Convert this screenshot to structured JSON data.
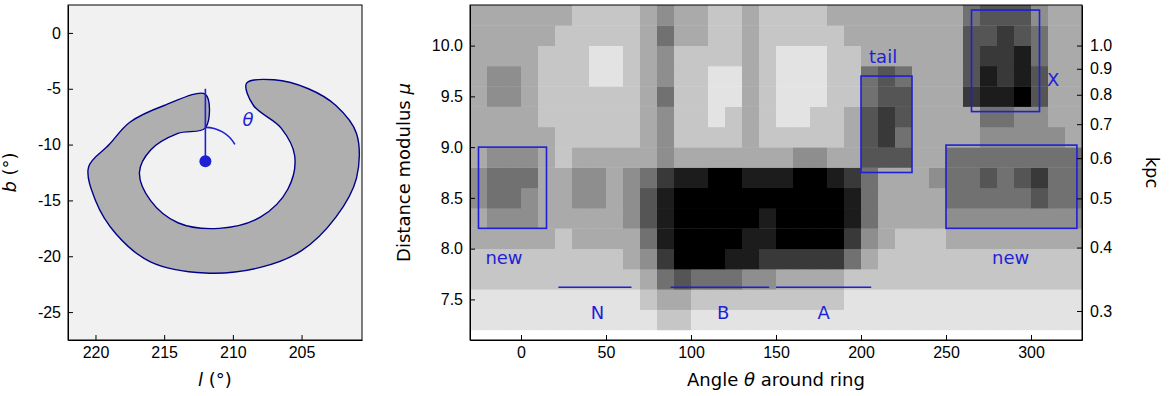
{
  "chart_data": [
    {
      "type": "map",
      "x_label": "l (°)",
      "y_label": "b (°)",
      "xlim": [
        222,
        200.6
      ],
      "ylim": [
        -27.5,
        2.5
      ],
      "xticks": [
        220,
        215,
        210,
        205
      ],
      "yticks": [
        0,
        -5,
        -10,
        -15,
        -20,
        -25
      ],
      "contour": {
        "color": "#00008b",
        "l": [
          212,
          215,
          217.5,
          219,
          220.5,
          220,
          218.5,
          216,
          212,
          208,
          205,
          202.5,
          201,
          201,
          202.5,
          204.5,
          207,
          209,
          208.5,
          206.5,
          205.5,
          206,
          208,
          211,
          214,
          216,
          216.8,
          216,
          214,
          212
        ],
        "b": [
          -5.5,
          -6.5,
          -8,
          -10,
          -12,
          -15,
          -18,
          -20.5,
          -21.5,
          -21,
          -19.5,
          -16.5,
          -13,
          -9,
          -6.5,
          -5,
          -4.2,
          -4.5,
          -6.5,
          -8.5,
          -11,
          -14,
          -16.5,
          -17.5,
          -17,
          -15,
          -12.5,
          -10.5,
          -9,
          -8.5
        ]
      },
      "center": {
        "l": 212,
        "b": -11.5,
        "color": "#1f1fd6"
      },
      "pointer": {
        "l": [
          212,
          212
        ],
        "b": [
          -11.5,
          -5
        ]
      },
      "angle_label": {
        "text": "θ",
        "l": 209.3,
        "b": -8.3
      }
    },
    {
      "type": "heatmap",
      "x_label": "Angle θ around ring",
      "y_label": "Distance modulus μ",
      "y2_label": "kpc",
      "xlim": [
        -30,
        330
      ],
      "ylim": [
        7.1,
        10.4
      ],
      "y2lim": [
        0.263,
        1.202
      ],
      "xticks": [
        0,
        50,
        100,
        150,
        200,
        250,
        300
      ],
      "yticks": [
        7.5,
        {
          "value": 8,
          "label": "8.0"
        },
        8.5,
        {
          "value": 9,
          "label": "9.0"
        },
        9.5,
        {
          "value": 10,
          "label": "10.0"
        }
      ],
      "y2ticks": [
        0.3,
        0.4,
        0.5,
        0.6,
        0.7,
        0.8,
        0.9,
        {
          "value": 1,
          "label": "1.0"
        }
      ],
      "theta_edges": [
        -30,
        -20,
        -10,
        0,
        10,
        20,
        30,
        40,
        50,
        60,
        70,
        80,
        90,
        100,
        110,
        120,
        130,
        140,
        150,
        160,
        170,
        180,
        190,
        200,
        210,
        220,
        230,
        240,
        250,
        260,
        270,
        280,
        290,
        300,
        310,
        320,
        330
      ],
      "mu_edges": [
        7.2,
        7.4,
        7.6,
        7.8,
        8.0,
        8.2,
        8.4,
        8.6,
        8.8,
        9.0,
        9.2,
        9.4,
        9.6,
        9.8,
        10.0,
        10.2,
        10.4
      ],
      "cells": [
        [
          1,
          1,
          1,
          1,
          1,
          1,
          1,
          1,
          1,
          1,
          1,
          2,
          2,
          1,
          1,
          1,
          1,
          1,
          1,
          1,
          1,
          1,
          1,
          1,
          1,
          1,
          1,
          1,
          1,
          1,
          1,
          1,
          1,
          1,
          1,
          1
        ],
        [
          1,
          1,
          1,
          1,
          1,
          1,
          1,
          1,
          1,
          1,
          2,
          3,
          3,
          2,
          2,
          2,
          2,
          2,
          2,
          2,
          2,
          2,
          1,
          1,
          1,
          1,
          1,
          1,
          1,
          1,
          1,
          1,
          1,
          1,
          1,
          1
        ],
        [
          2,
          2,
          2,
          2,
          2,
          2,
          2,
          2,
          2,
          2,
          3,
          5,
          6,
          5,
          5,
          5,
          4,
          4,
          3,
          3,
          3,
          3,
          2,
          2,
          2,
          2,
          2,
          2,
          2,
          2,
          2,
          2,
          2,
          2,
          2,
          2
        ],
        [
          2,
          2,
          2,
          2,
          2,
          2,
          2,
          2,
          2,
          3,
          4,
          7,
          9,
          9,
          9,
          8,
          8,
          7,
          7,
          7,
          7,
          7,
          5,
          3,
          2,
          2,
          2,
          2,
          2,
          2,
          2,
          2,
          2,
          2,
          2,
          2
        ],
        [
          3,
          3,
          3,
          3,
          3,
          2,
          3,
          3,
          3,
          3,
          5,
          8,
          9,
          9,
          9,
          9,
          8,
          8,
          9,
          9,
          9,
          9,
          7,
          4,
          3,
          2,
          2,
          2,
          3,
          3,
          3,
          3,
          3,
          3,
          3,
          3
        ],
        [
          3,
          4,
          4,
          4,
          3,
          3,
          3,
          3,
          3,
          4,
          6,
          8,
          9,
          9,
          9,
          9,
          9,
          8,
          9,
          9,
          9,
          9,
          8,
          5,
          3,
          3,
          3,
          3,
          4,
          4,
          4,
          4,
          4,
          4,
          4,
          4
        ],
        [
          4,
          5,
          5,
          4,
          3,
          3,
          4,
          4,
          3,
          4,
          6,
          8,
          9,
          9,
          9,
          9,
          9,
          9,
          9,
          9,
          9,
          9,
          8,
          5,
          3,
          3,
          3,
          3,
          5,
          5,
          5,
          5,
          5,
          6,
          5,
          5
        ],
        [
          4,
          5,
          5,
          5,
          3,
          3,
          4,
          4,
          3,
          4,
          5,
          7,
          8,
          8,
          9,
          9,
          8,
          8,
          8,
          9,
          9,
          8,
          7,
          5,
          3,
          3,
          3,
          4,
          5,
          5,
          6,
          5,
          6,
          7,
          5,
          5
        ],
        [
          3,
          4,
          4,
          4,
          3,
          2,
          3,
          3,
          3,
          3,
          3,
          4,
          3,
          3,
          3,
          3,
          3,
          3,
          3,
          4,
          4,
          3,
          3,
          6,
          6,
          6,
          3,
          3,
          5,
          5,
          5,
          5,
          5,
          5,
          5,
          5
        ],
        [
          3,
          3,
          3,
          3,
          3,
          2,
          2,
          2,
          2,
          2,
          3,
          4,
          2,
          2,
          2,
          2,
          3,
          2,
          2,
          2,
          2,
          2,
          3,
          6,
          7,
          5,
          3,
          3,
          3,
          3,
          4,
          4,
          4,
          4,
          4,
          3
        ],
        [
          3,
          3,
          3,
          3,
          2,
          2,
          2,
          2,
          2,
          2,
          3,
          4,
          2,
          2,
          1,
          2,
          3,
          2,
          1,
          1,
          2,
          2,
          3,
          6,
          7,
          6,
          3,
          3,
          3,
          3,
          5,
          5,
          4,
          4,
          3,
          3
        ],
        [
          3,
          4,
          4,
          3,
          2,
          2,
          2,
          2,
          2,
          2,
          3,
          5,
          2,
          2,
          1,
          1,
          3,
          2,
          1,
          1,
          1,
          2,
          2,
          5,
          6,
          6,
          3,
          3,
          3,
          7,
          8,
          8,
          9,
          6,
          3,
          3
        ],
        [
          3,
          4,
          4,
          3,
          2,
          2,
          2,
          1,
          1,
          2,
          3,
          4,
          2,
          2,
          1,
          1,
          3,
          2,
          1,
          1,
          1,
          2,
          2,
          5,
          6,
          5,
          3,
          3,
          3,
          6,
          8,
          7,
          8,
          6,
          3,
          3
        ],
        [
          3,
          3,
          3,
          3,
          2,
          2,
          2,
          1,
          1,
          2,
          3,
          4,
          2,
          2,
          2,
          2,
          3,
          2,
          1,
          1,
          1,
          2,
          2,
          3,
          3,
          3,
          3,
          3,
          3,
          6,
          7,
          7,
          8,
          5,
          3,
          3
        ],
        [
          3,
          3,
          3,
          3,
          3,
          2,
          2,
          2,
          2,
          2,
          3,
          5,
          3,
          3,
          2,
          2,
          3,
          2,
          2,
          2,
          2,
          2,
          3,
          3,
          3,
          3,
          3,
          3,
          3,
          6,
          6,
          7,
          6,
          5,
          3,
          3
        ],
        [
          3,
          3,
          3,
          3,
          3,
          3,
          2,
          2,
          2,
          2,
          3,
          4,
          3,
          3,
          2,
          2,
          3,
          2,
          2,
          2,
          2,
          3,
          3,
          3,
          3,
          3,
          3,
          3,
          3,
          5,
          6,
          6,
          6,
          4,
          3,
          3
        ]
      ],
      "annotations": {
        "color": "#1f1fd6",
        "boxes": [
          {
            "label": "new",
            "theta": [
              -25,
              15
            ],
            "mu": [
              8.2,
              9.0
            ],
            "label_at": [
              -10,
              7.9
            ]
          },
          {
            "label": "tail",
            "theta": [
              200,
              230
            ],
            "mu": [
              8.75,
              9.7
            ],
            "label_at": [
              213,
              9.88
            ]
          },
          {
            "label": "X",
            "theta": [
              265,
              305
            ],
            "mu": [
              9.35,
              10.35
            ],
            "label_at": [
              313,
              9.65
            ]
          },
          {
            "label": "new",
            "theta": [
              250,
              327
            ],
            "mu": [
              8.2,
              9.02
            ],
            "label_at": [
              288,
              7.9
            ]
          }
        ],
        "segments": [
          {
            "label": "N",
            "theta": [
              22,
              65
            ],
            "mu": 7.62,
            "label_at": [
              45,
              7.36
            ]
          },
          {
            "label": "B",
            "theta": [
              88,
              146
            ],
            "mu": 7.62,
            "label_at": [
              119,
              7.36
            ]
          },
          {
            "label": "A",
            "theta": [
              150,
              206
            ],
            "mu": 7.62,
            "label_at": [
              178,
              7.36
            ]
          }
        ]
      }
    }
  ]
}
